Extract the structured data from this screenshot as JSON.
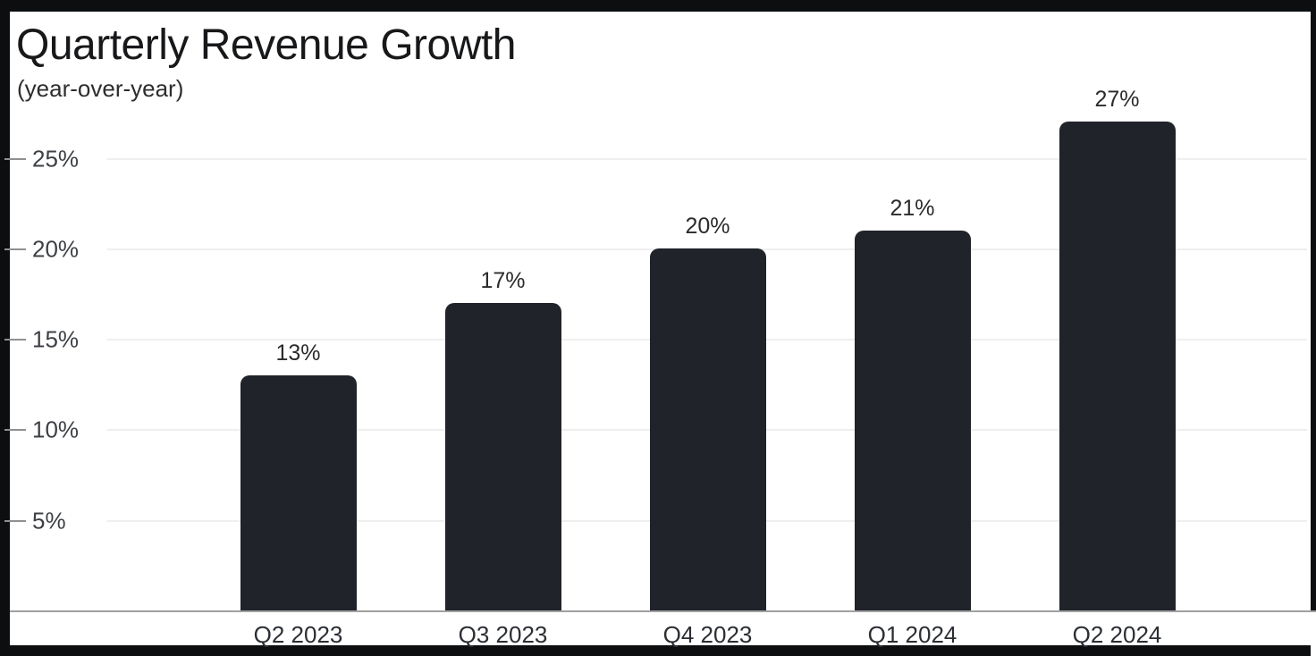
{
  "chart_data": {
    "type": "bar",
    "title": "Quarterly Revenue Growth",
    "subtitle": "(year-over-year)",
    "categories": [
      "Q2 2023",
      "Q3 2023",
      "Q4 2023",
      "Q1 2024",
      "Q2 2024"
    ],
    "values": [
      13,
      17,
      20,
      21,
      27
    ],
    "data_labels": [
      "13%",
      "17%",
      "20%",
      "21%",
      "27%"
    ],
    "xlabel": "",
    "ylabel": "",
    "y_ticks": [
      {
        "value": 25,
        "label": "25%"
      },
      {
        "value": 20,
        "label": "20%"
      },
      {
        "value": 15,
        "label": "15%"
      },
      {
        "value": 10,
        "label": "10%"
      },
      {
        "value": 5,
        "label": "5%"
      }
    ],
    "ylim": [
      0,
      33
    ],
    "grid": "horizontal",
    "legend": "none",
    "colors": {
      "bar": "#202329",
      "title": "#17181a",
      "subtitle": "#2e2e2e",
      "tick_label": "#3d4045",
      "tick_mark": "#909090",
      "gridline": "#efefef",
      "axis_line": "#a0a0a0",
      "data_label": "#2b2b2b",
      "category_label": "#2b2e33",
      "canvas_background": "#ffffff",
      "frame_background": "#0d0e10"
    }
  }
}
